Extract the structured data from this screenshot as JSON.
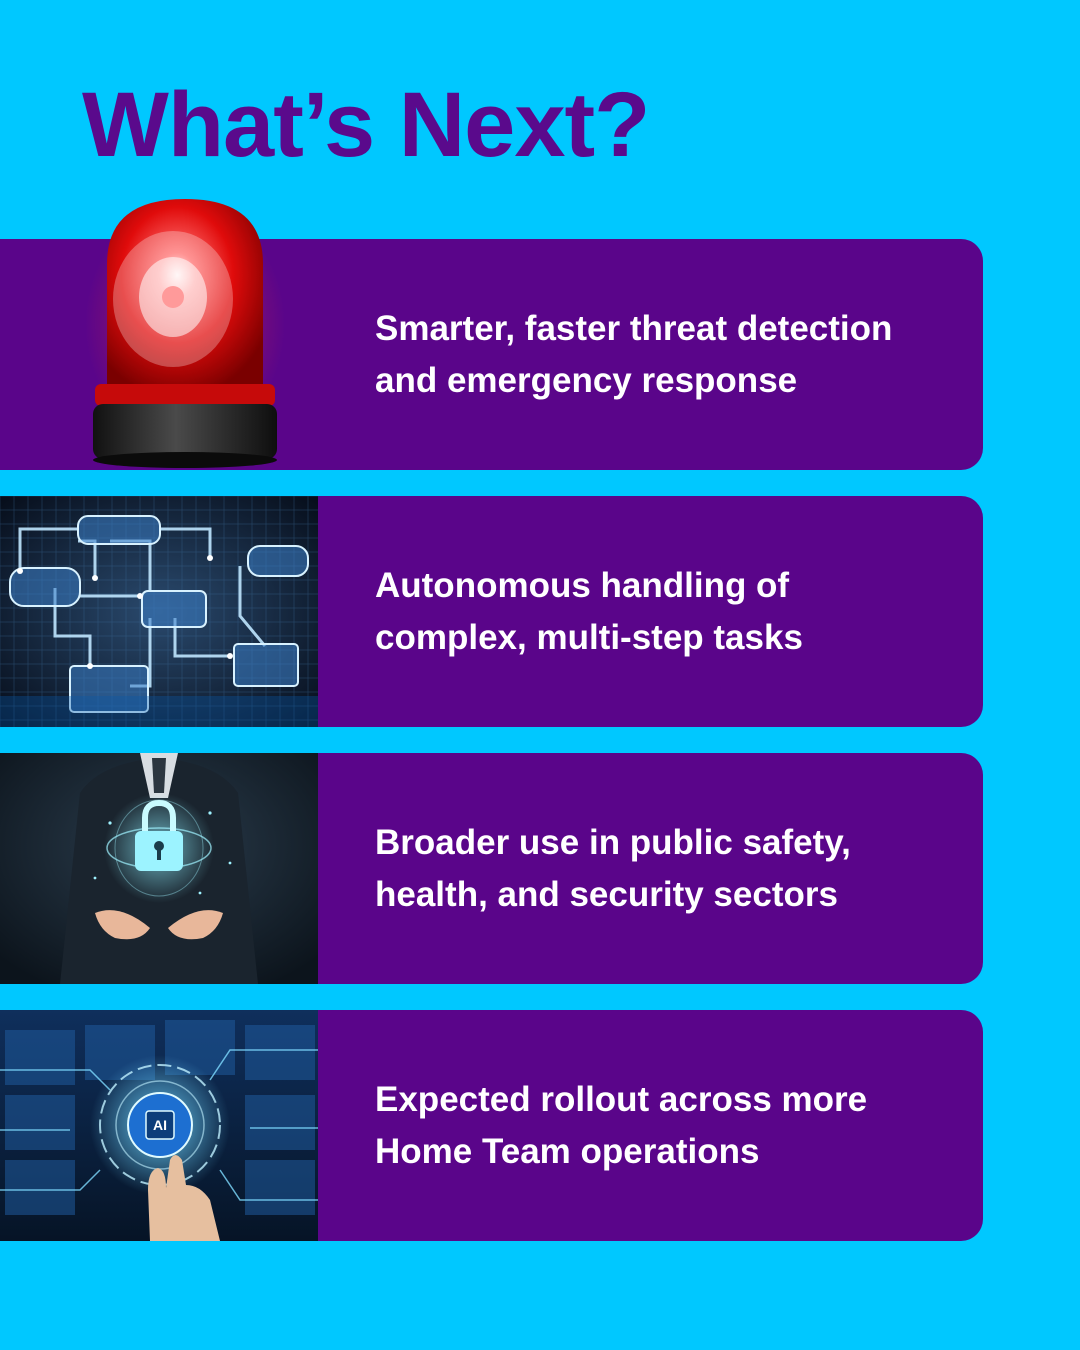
{
  "title": "What’s Next?",
  "items": [
    {
      "text": "Smarter, faster threat detection and emergency response",
      "icon": "siren-icon"
    },
    {
      "text": "Autonomous handling of complex, multi-step tasks",
      "icon": "flowchart-network-image"
    },
    {
      "text": "Broader use in public safety, health, and security sectors",
      "icon": "padlock-hands-image"
    },
    {
      "text": "Expected rollout across more Home Team operations",
      "icon": "ai-chip-touch-image"
    }
  ],
  "image_text": {
    "ai_chip": "AI"
  },
  "colors": {
    "background": "#00c8ff",
    "card": "#5a058a",
    "title": "#5a0a8c",
    "text": "#ffffff"
  }
}
